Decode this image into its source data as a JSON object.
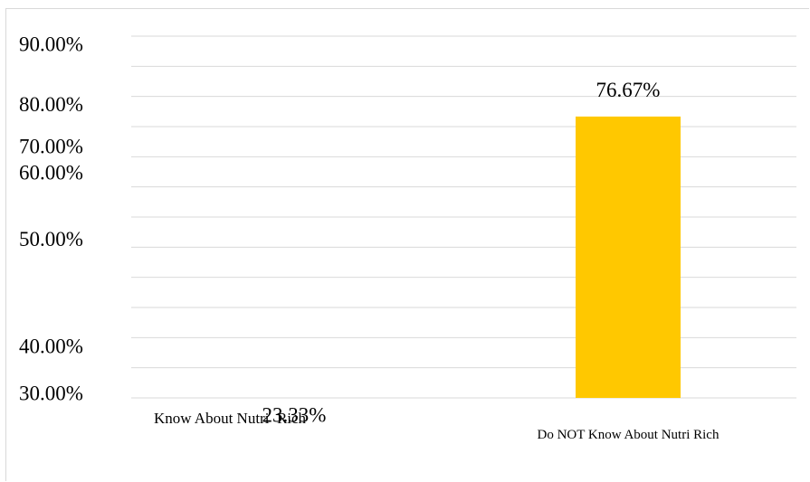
{
  "chart_data": {
    "type": "bar",
    "categories": [
      "Know About Nutri  Rich",
      "Do NOT Know About Nutri Rich"
    ],
    "values": [
      0.2333,
      0.7667
    ],
    "data_labels": [
      "23.33%",
      "76.67%"
    ],
    "colors": [
      "#f8cba4",
      "#ffc800"
    ],
    "ylim": [
      0.3,
      0.9
    ],
    "yticks": [
      {
        "value": 0.3,
        "label": "30.00%"
      },
      {
        "value": 0.4,
        "label": "40.00%"
      },
      {
        "value": 0.5,
        "label": "50.00%"
      },
      {
        "value": 0.6,
        "label": "60.00%"
      },
      {
        "value": 0.7,
        "label": "70.00%"
      },
      {
        "value": 0.8,
        "label": "80.00%"
      },
      {
        "value": 0.9,
        "label": "90.00%"
      }
    ],
    "grid": true,
    "gridline_color": "#d9d9d9",
    "title": "",
    "xlabel": "",
    "ylabel": ""
  }
}
